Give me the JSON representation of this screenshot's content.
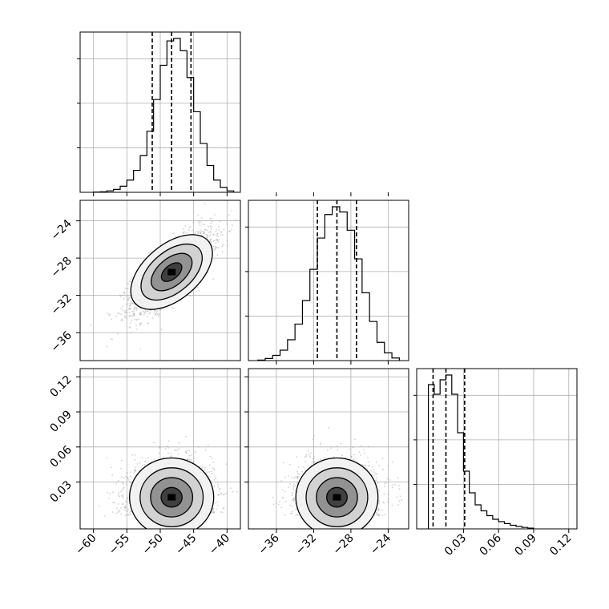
{
  "chart_data": {
    "type": "corner",
    "title": "",
    "grid": true,
    "colors": {
      "line": "#000000",
      "points": "#9a9a9a",
      "grid": "#b0b0b0"
    },
    "parameters": [
      {
        "label": "",
        "range": [
          -62,
          -38
        ],
        "ticks": [
          -60,
          -55,
          -50,
          -45,
          -40
        ],
        "tick_labels": [
          "−60",
          "−55",
          "−50",
          "−45",
          "−40"
        ]
      },
      {
        "label": "",
        "range": [
          -39,
          -21.8
        ],
        "ticks": [
          -36,
          -32,
          -28,
          -24
        ],
        "tick_labels": [
          "−36",
          "−32",
          "−28",
          "−24"
        ]
      },
      {
        "label": "",
        "range": [
          -0.01,
          0.127
        ],
        "ticks": [
          0.03,
          0.06,
          0.09,
          0.12
        ],
        "tick_labels": [
          "0.03",
          "0.06",
          "0.09",
          "0.12"
        ]
      }
    ],
    "diagonal_histograms": [
      {
        "parameter": 0,
        "bin_edges": [
          -60,
          -59,
          -58,
          -57,
          -56,
          -55,
          -54,
          -53,
          -52,
          -51,
          -50,
          -49,
          -48,
          -47,
          -46,
          -45,
          -44,
          -43,
          -42,
          -41,
          -40,
          -39
        ],
        "counts": [
          1,
          2,
          6,
          12,
          25,
          50,
          90,
          150,
          250,
          380,
          520,
          620,
          630,
          580,
          470,
          330,
          200,
          110,
          50,
          20,
          6
        ],
        "quantiles": [
          -51.2,
          -48.3,
          -45.4
        ]
      },
      {
        "parameter": 1,
        "bin_edges": [
          -38,
          -37.2,
          -36.4,
          -35.6,
          -34.8,
          -34,
          -33.2,
          -32.4,
          -31.6,
          -30.8,
          -30,
          -29.2,
          -28.4,
          -27.6,
          -26.8,
          -26,
          -25.2,
          -24.4,
          -23.6,
          -22.8
        ],
        "counts": [
          2,
          8,
          20,
          40,
          80,
          140,
          230,
          350,
          470,
          560,
          590,
          570,
          500,
          390,
          260,
          150,
          70,
          30,
          10
        ],
        "quantiles": [
          -31.6,
          -29.5,
          -27.4
        ]
      },
      {
        "parameter": 2,
        "bin_edges": [
          0.0,
          0.005,
          0.01,
          0.015,
          0.02,
          0.025,
          0.03,
          0.035,
          0.04,
          0.045,
          0.05,
          0.055,
          0.06,
          0.065,
          0.07,
          0.075,
          0.08,
          0.085,
          0.09
        ],
        "counts": [
          600,
          560,
          620,
          640,
          560,
          400,
          240,
          150,
          100,
          75,
          55,
          40,
          30,
          22,
          15,
          10,
          6,
          3
        ],
        "quantiles": [
          0.004,
          0.015,
          0.031
        ]
      }
    ],
    "scatter_panels": [
      {
        "x_param": 0,
        "y_param": 1,
        "mean": [
          -48.3,
          -29.5
        ],
        "std": [
          3.0,
          2.1
        ],
        "correlation": 0.75,
        "n_points": 2600,
        "contour_levels": [
          0.5,
          1.0,
          1.5,
          2.0
        ]
      },
      {
        "x_param": 0,
        "y_param": 2,
        "mean": [
          -48.3,
          0.017
        ],
        "std": [
          3.0,
          0.016
        ],
        "correlation": 0.0,
        "n_points": 2600,
        "contour_levels": [
          0.5,
          1.0,
          1.5,
          2.0
        ]
      },
      {
        "x_param": 1,
        "y_param": 2,
        "mean": [
          -29.5,
          0.017
        ],
        "std": [
          2.1,
          0.016
        ],
        "correlation": 0.0,
        "n_points": 2600,
        "contour_levels": [
          0.5,
          1.0,
          1.5,
          2.0
        ]
      }
    ]
  }
}
